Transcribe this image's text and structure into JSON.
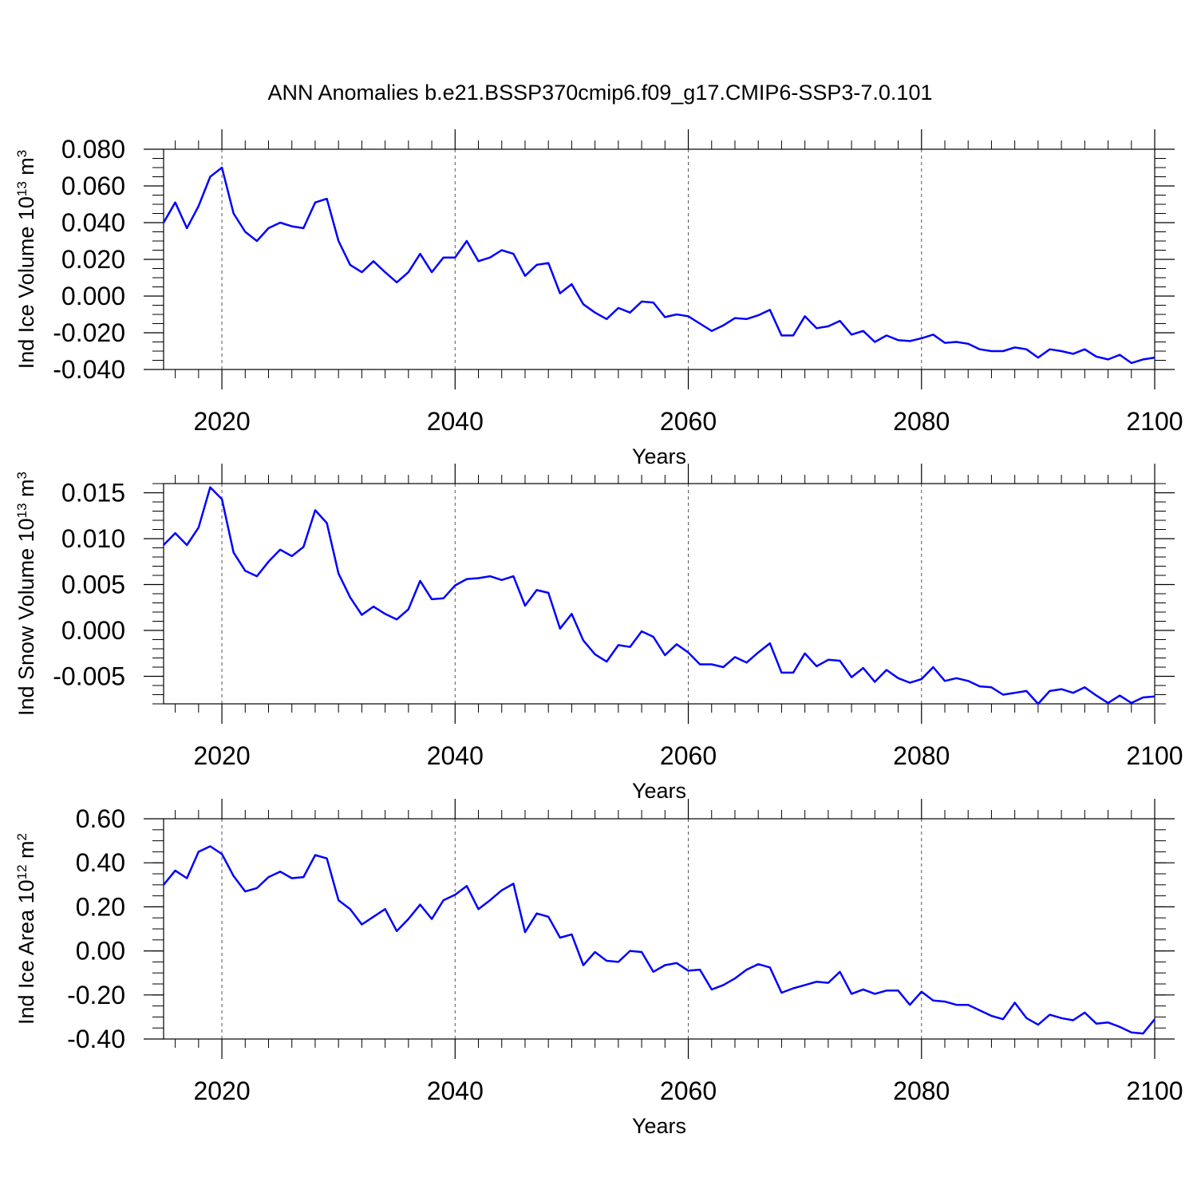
{
  "title": "ANN Anomalies b.e21.BSSP370cmip6.f09_g17.CMIP6-SSP3-7.0.101",
  "line_color": "#0000ff",
  "chart_data": [
    {
      "type": "line",
      "xlabel": "Years",
      "ylabel": "Ind Ice Volume 10",
      "ylabel_exp": "13",
      "ylabel_unit": " m",
      "ylabel_unit_exp": "3",
      "xlim": [
        2015,
        2100
      ],
      "ylim": [
        -0.04,
        0.08
      ],
      "yticks": [
        -0.04,
        -0.02,
        0.0,
        0.02,
        0.04,
        0.06,
        0.08
      ],
      "ytick_labels": [
        "-0.040",
        "-0.020",
        "0.000",
        "0.020",
        "0.040",
        "0.060",
        "0.080"
      ],
      "xticks": [
        2020,
        2040,
        2060,
        2080,
        2100
      ],
      "xtick_labels": [
        "2020",
        "2040",
        "2060",
        "2080",
        "2100"
      ],
      "yminor_step": 0.005,
      "grid": "dashed vertical lines at major x ticks",
      "x": [
        2015,
        2016,
        2017,
        2018,
        2019,
        2020,
        2021,
        2022,
        2023,
        2024,
        2025,
        2026,
        2027,
        2028,
        2029,
        2030,
        2031,
        2032,
        2033,
        2034,
        2035,
        2036,
        2037,
        2038,
        2039,
        2040,
        2041,
        2042,
        2043,
        2044,
        2045,
        2046,
        2047,
        2048,
        2049,
        2050,
        2051,
        2052,
        2053,
        2054,
        2055,
        2056,
        2057,
        2058,
        2059,
        2060,
        2061,
        2062,
        2063,
        2064,
        2065,
        2066,
        2067,
        2068,
        2069,
        2070,
        2071,
        2072,
        2073,
        2074,
        2075,
        2076,
        2077,
        2078,
        2079,
        2080,
        2081,
        2082,
        2083,
        2084,
        2085,
        2086,
        2087,
        2088,
        2089,
        2090,
        2091,
        2092,
        2093,
        2094,
        2095,
        2096,
        2097,
        2098,
        2099,
        2100
      ],
      "y": [
        0.04,
        0.051,
        0.037,
        0.049,
        0.065,
        0.07,
        0.045,
        0.035,
        0.03,
        0.037,
        0.04,
        0.038,
        0.037,
        0.051,
        0.053,
        0.03,
        0.017,
        0.013,
        0.019,
        0.013,
        0.0075,
        0.013,
        0.023,
        0.013,
        0.021,
        0.021,
        0.03,
        0.019,
        0.021,
        0.025,
        0.023,
        0.011,
        0.017,
        0.018,
        0.0015,
        0.0065,
        -0.0045,
        -0.009,
        -0.0125,
        -0.0065,
        -0.009,
        -0.003,
        -0.0035,
        -0.0115,
        -0.01,
        -0.011,
        -0.015,
        -0.019,
        -0.016,
        -0.012,
        -0.0125,
        -0.0105,
        -0.0075,
        -0.0215,
        -0.0215,
        -0.011,
        -0.0175,
        -0.0165,
        -0.0135,
        -0.021,
        -0.019,
        -0.025,
        -0.0215,
        -0.024,
        -0.0245,
        -0.023,
        -0.021,
        -0.0255,
        -0.025,
        -0.026,
        -0.029,
        -0.03,
        -0.03,
        -0.028,
        -0.029,
        -0.0335,
        -0.029,
        -0.03,
        -0.0315,
        -0.029,
        -0.033,
        -0.0345,
        -0.032,
        -0.0365,
        -0.0345,
        -0.0335
      ]
    },
    {
      "type": "line",
      "xlabel": "Years",
      "ylabel": "Ind Snow Volume 10",
      "ylabel_exp": "13",
      "ylabel_unit": " m",
      "ylabel_unit_exp": "3",
      "xlim": [
        2015,
        2100
      ],
      "ylim": [
        -0.008,
        0.016
      ],
      "yticks": [
        -0.005,
        0.0,
        0.005,
        0.01,
        0.015
      ],
      "ytick_labels": [
        "-0.005",
        "0.000",
        "0.005",
        "0.010",
        "0.015"
      ],
      "xticks": [
        2020,
        2040,
        2060,
        2080,
        2100
      ],
      "xtick_labels": [
        "2020",
        "2040",
        "2060",
        "2080",
        "2100"
      ],
      "yminor_step": 0.001,
      "grid": "dashed vertical lines at major x ticks",
      "x": [
        2015,
        2016,
        2017,
        2018,
        2019,
        2020,
        2021,
        2022,
        2023,
        2024,
        2025,
        2026,
        2027,
        2028,
        2029,
        2030,
        2031,
        2032,
        2033,
        2034,
        2035,
        2036,
        2037,
        2038,
        2039,
        2040,
        2041,
        2042,
        2043,
        2044,
        2045,
        2046,
        2047,
        2048,
        2049,
        2050,
        2051,
        2052,
        2053,
        2054,
        2055,
        2056,
        2057,
        2058,
        2059,
        2060,
        2061,
        2062,
        2063,
        2064,
        2065,
        2066,
        2067,
        2068,
        2069,
        2070,
        2071,
        2072,
        2073,
        2074,
        2075,
        2076,
        2077,
        2078,
        2079,
        2080,
        2081,
        2082,
        2083,
        2084,
        2085,
        2086,
        2087,
        2088,
        2089,
        2090,
        2091,
        2092,
        2093,
        2094,
        2095,
        2096,
        2097,
        2098,
        2099,
        2100
      ],
      "y": [
        0.0093,
        0.0106,
        0.0093,
        0.0112,
        0.0156,
        0.0143,
        0.0085,
        0.0065,
        0.0059,
        0.0075,
        0.0088,
        0.0081,
        0.0091,
        0.0131,
        0.0117,
        0.0062,
        0.0036,
        0.0017,
        0.0026,
        0.0018,
        0.0012,
        0.0023,
        0.0054,
        0.0034,
        0.0035,
        0.0049,
        0.0056,
        0.0057,
        0.0059,
        0.0055,
        0.0059,
        0.0027,
        0.0044,
        0.0041,
        0.0002,
        0.0018,
        -0.0011,
        -0.0026,
        -0.0034,
        -0.0016,
        -0.0018,
        -0.0001,
        -0.0007,
        -0.0027,
        -0.0015,
        -0.0024,
        -0.0037,
        -0.0037,
        -0.004,
        -0.0029,
        -0.0035,
        -0.0024,
        -0.0014,
        -0.0046,
        -0.0046,
        -0.0025,
        -0.0039,
        -0.0032,
        -0.0033,
        -0.0051,
        -0.0041,
        -0.0056,
        -0.0043,
        -0.0052,
        -0.0057,
        -0.0053,
        -0.004,
        -0.0055,
        -0.0052,
        -0.0055,
        -0.0061,
        -0.0062,
        -0.007,
        -0.0068,
        -0.0066,
        -0.008,
        -0.0066,
        -0.0064,
        -0.0068,
        -0.0062,
        -0.0071,
        -0.0079,
        -0.0071,
        -0.0079,
        -0.0073,
        -0.0072
      ]
    },
    {
      "type": "line",
      "xlabel": "Years",
      "ylabel": "Ind Ice Area 10",
      "ylabel_exp": "12",
      "ylabel_unit": " m",
      "ylabel_unit_exp": "2",
      "xlim": [
        2015,
        2100
      ],
      "ylim": [
        -0.4,
        0.6
      ],
      "yticks": [
        -0.4,
        -0.2,
        0.0,
        0.2,
        0.4,
        0.6
      ],
      "ytick_labels": [
        "-0.40",
        "-0.20",
        "0.00",
        "0.20",
        "0.40",
        "0.60"
      ],
      "xticks": [
        2020,
        2040,
        2060,
        2080,
        2100
      ],
      "xtick_labels": [
        "2020",
        "2040",
        "2060",
        "2080",
        "2100"
      ],
      "yminor_step": 0.05,
      "grid": "dashed vertical lines at major x ticks",
      "x": [
        2015,
        2016,
        2017,
        2018,
        2019,
        2020,
        2021,
        2022,
        2023,
        2024,
        2025,
        2026,
        2027,
        2028,
        2029,
        2030,
        2031,
        2032,
        2033,
        2034,
        2035,
        2036,
        2037,
        2038,
        2039,
        2040,
        2041,
        2042,
        2043,
        2044,
        2045,
        2046,
        2047,
        2048,
        2049,
        2050,
        2051,
        2052,
        2053,
        2054,
        2055,
        2056,
        2057,
        2058,
        2059,
        2060,
        2061,
        2062,
        2063,
        2064,
        2065,
        2066,
        2067,
        2068,
        2069,
        2070,
        2071,
        2072,
        2073,
        2074,
        2075,
        2076,
        2077,
        2078,
        2079,
        2080,
        2081,
        2082,
        2083,
        2084,
        2085,
        2086,
        2087,
        2088,
        2089,
        2090,
        2091,
        2092,
        2093,
        2094,
        2095,
        2096,
        2097,
        2098,
        2099,
        2100
      ],
      "y": [
        0.3,
        0.365,
        0.33,
        0.45,
        0.475,
        0.44,
        0.34,
        0.27,
        0.285,
        0.335,
        0.36,
        0.33,
        0.335,
        0.435,
        0.42,
        0.23,
        0.19,
        0.12,
        0.155,
        0.19,
        0.09,
        0.145,
        0.21,
        0.145,
        0.23,
        0.255,
        0.295,
        0.19,
        0.23,
        0.275,
        0.305,
        0.085,
        0.17,
        0.155,
        0.06,
        0.075,
        -0.065,
        -0.005,
        -0.045,
        -0.05,
        0.0,
        -0.005,
        -0.095,
        -0.065,
        -0.055,
        -0.09,
        -0.085,
        -0.175,
        -0.155,
        -0.125,
        -0.085,
        -0.06,
        -0.075,
        -0.19,
        -0.17,
        -0.155,
        -0.14,
        -0.145,
        -0.095,
        -0.195,
        -0.175,
        -0.195,
        -0.18,
        -0.18,
        -0.245,
        -0.185,
        -0.225,
        -0.23,
        -0.245,
        -0.245,
        -0.27,
        -0.295,
        -0.31,
        -0.235,
        -0.305,
        -0.335,
        -0.29,
        -0.305,
        -0.315,
        -0.28,
        -0.33,
        -0.325,
        -0.345,
        -0.37,
        -0.375,
        -0.31
      ]
    }
  ]
}
